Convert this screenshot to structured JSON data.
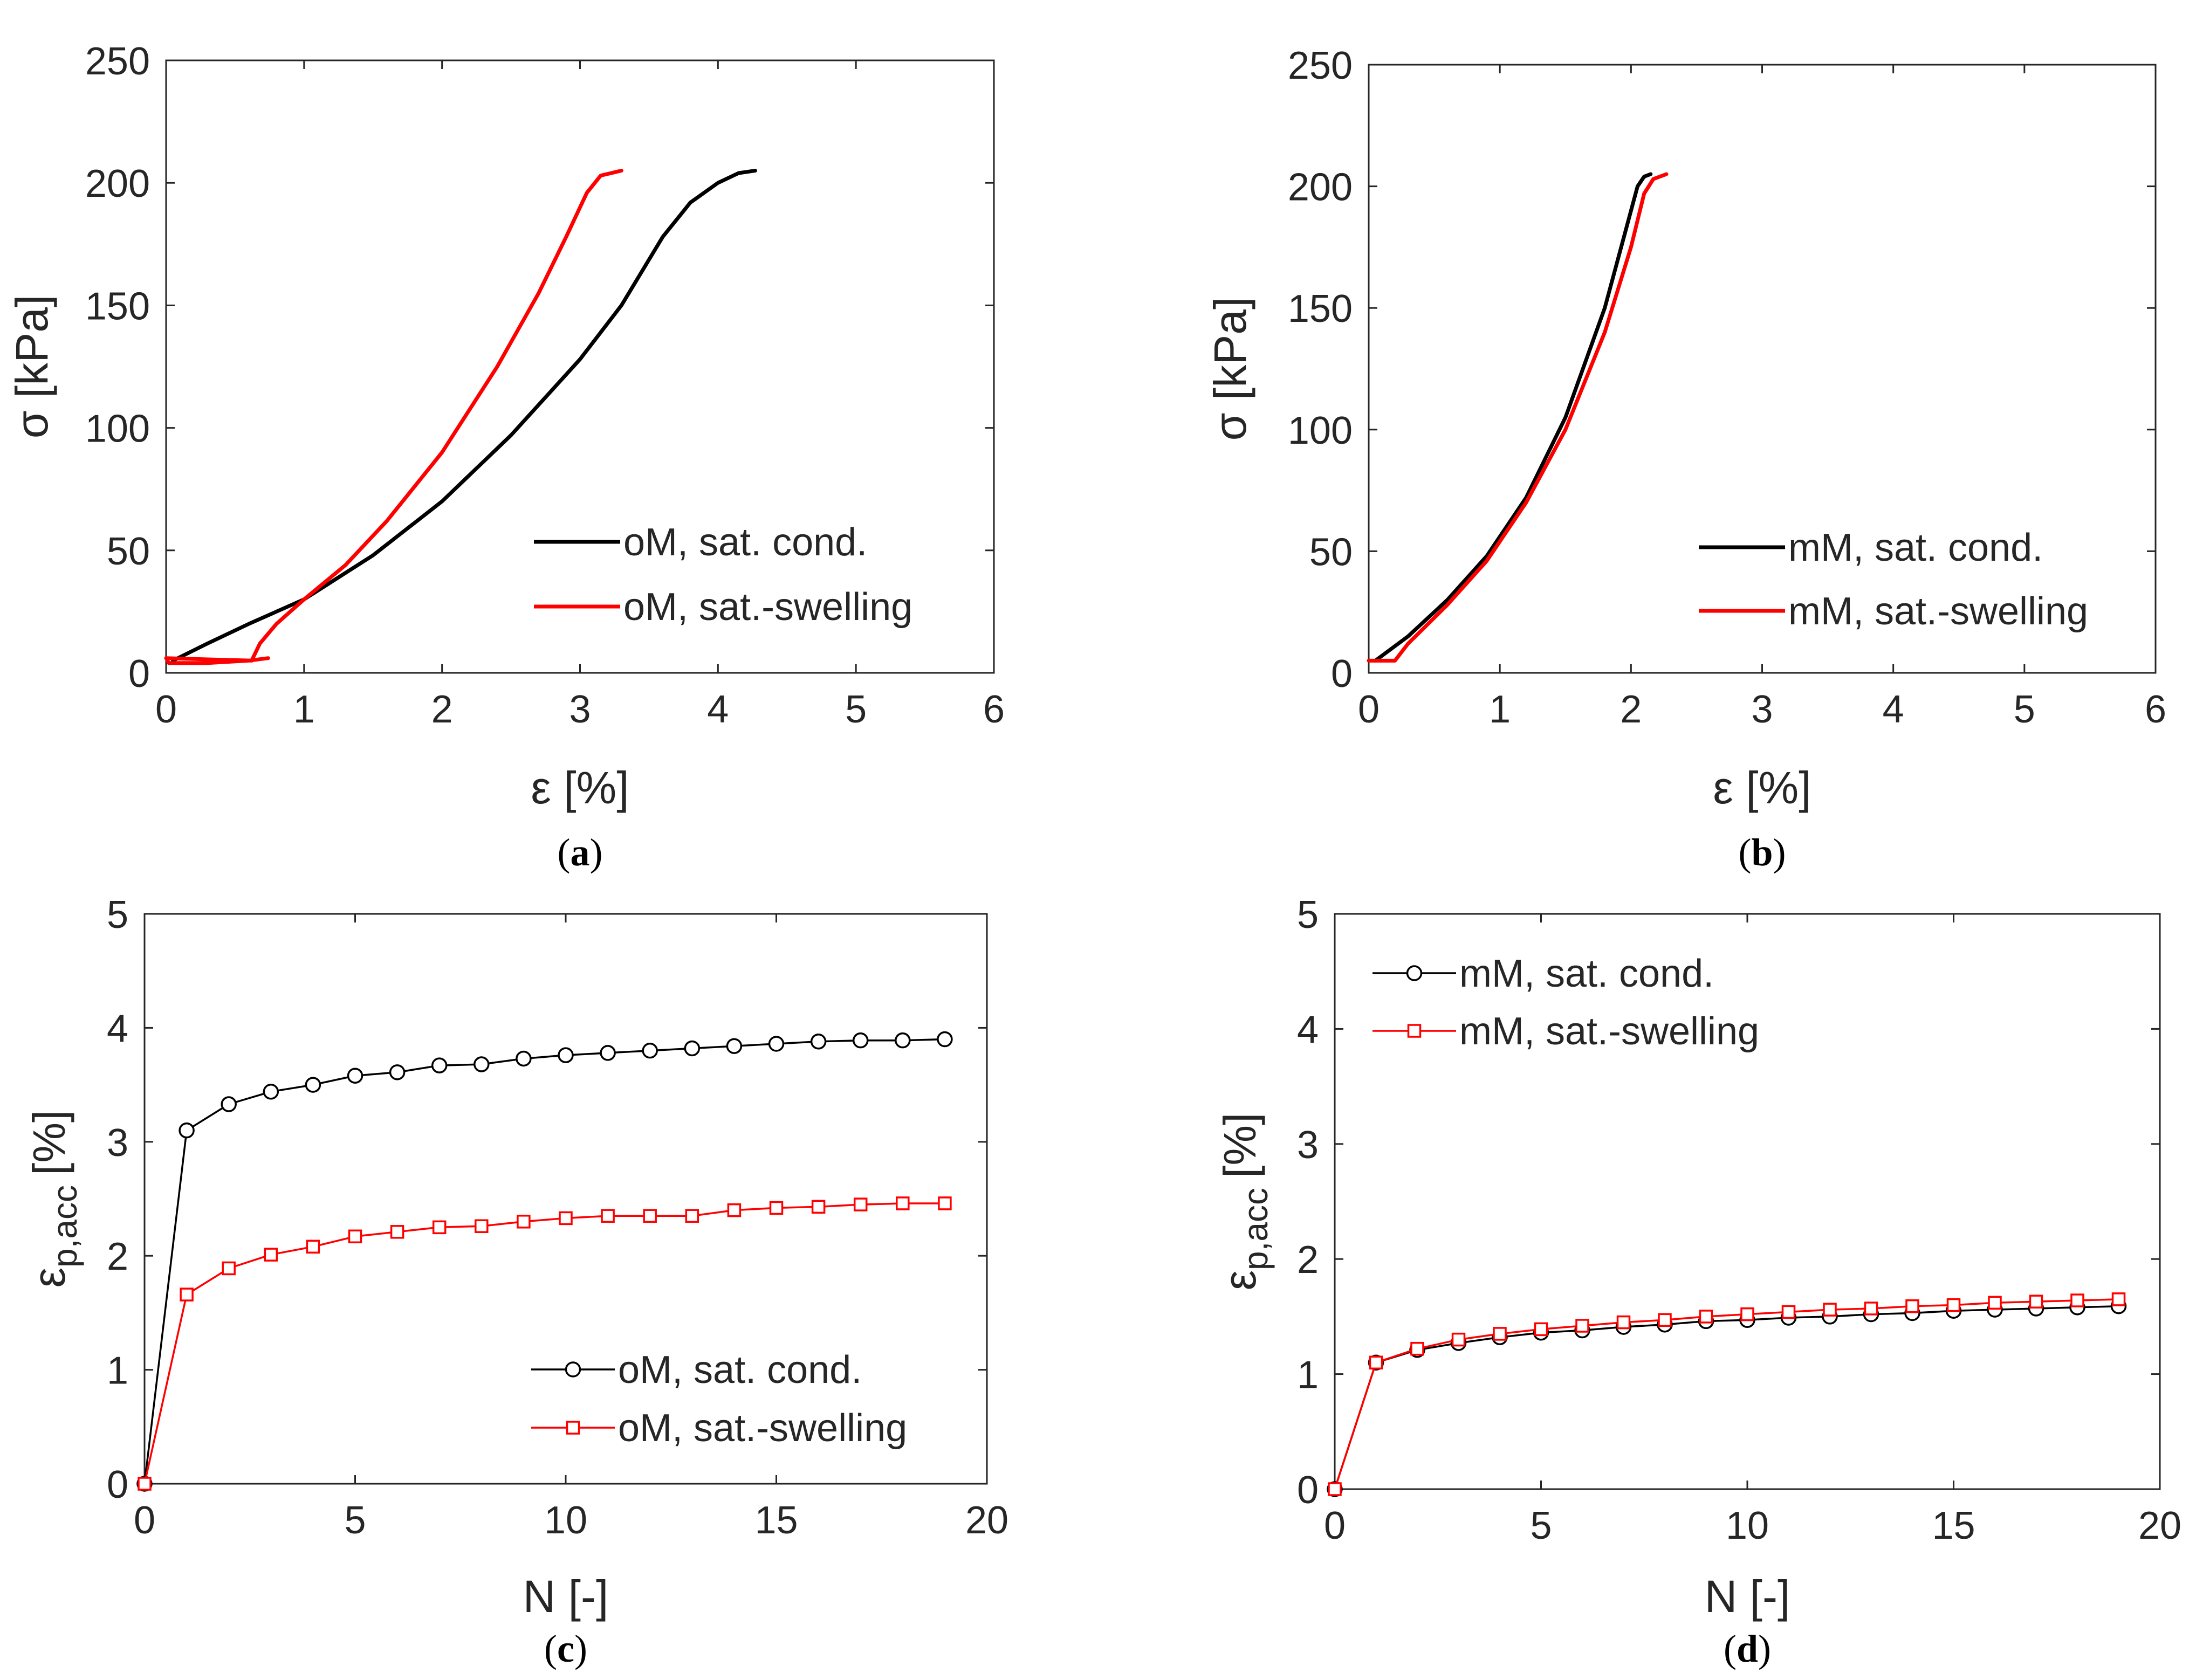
{
  "colors": {
    "black": "#000000",
    "red": "#ff0000",
    "axis": "#262626"
  },
  "chart_data": [
    {
      "id": "a",
      "type": "line",
      "caption": "a",
      "xlabel": "ε [%]",
      "ylabel": "σ [kPa]",
      "xlim": [
        0,
        6
      ],
      "ylim": [
        0,
        250
      ],
      "xticks": [
        "0",
        "1",
        "2",
        "3",
        "4",
        "5",
        "6"
      ],
      "yticks": [
        "0",
        "50",
        "100",
        "150",
        "200",
        "250"
      ],
      "legend_position": "lower-right",
      "series": [
        {
          "name": "oM, sat. cond.",
          "color": "#000000",
          "marker": "none",
          "x": [
            0.05,
            0.3,
            0.6,
            1.0,
            1.5,
            2.0,
            2.5,
            3.0,
            3.3,
            3.6,
            3.8,
            4.0,
            4.15,
            4.27
          ],
          "y": [
            5,
            12,
            20,
            30,
            48,
            70,
            97,
            128,
            150,
            178,
            192,
            200,
            204,
            205
          ]
        },
        {
          "name": "oM, sat.-swelling",
          "color": "#ff0000",
          "marker": "none",
          "x": [
            0.74,
            0.6,
            0.3,
            0.02,
            0.0,
            0.62,
            0.68,
            0.8,
            1.0,
            1.3,
            1.6,
            2.0,
            2.4,
            2.7,
            2.9,
            3.05,
            3.15,
            3.3
          ],
          "y": [
            6,
            5,
            4,
            4,
            6,
            5,
            12,
            20,
            30,
            44,
            62,
            90,
            125,
            155,
            178,
            196,
            203,
            205
          ]
        }
      ]
    },
    {
      "id": "b",
      "type": "line",
      "caption": "b",
      "xlabel": "ε [%]",
      "ylabel": "σ [kPa]",
      "xlim": [
        0,
        6
      ],
      "ylim": [
        0,
        250
      ],
      "xticks": [
        "0",
        "1",
        "2",
        "3",
        "4",
        "5",
        "6"
      ],
      "yticks": [
        "0",
        "50",
        "100",
        "150",
        "200",
        "250"
      ],
      "legend_position": "lower-right",
      "series": [
        {
          "name": "mM, sat. cond.",
          "color": "#000000",
          "marker": "none",
          "x": [
            0.05,
            0.3,
            0.6,
            0.9,
            1.2,
            1.5,
            1.8,
            1.95,
            2.05,
            2.1,
            2.15
          ],
          "y": [
            5,
            15,
            30,
            48,
            72,
            105,
            150,
            180,
            200,
            204,
            205
          ]
        },
        {
          "name": "mM, sat.-swelling",
          "color": "#ff0000",
          "marker": "none",
          "x": [
            0.0,
            0.2,
            0.3,
            0.6,
            0.9,
            1.2,
            1.5,
            1.8,
            2.0,
            2.1,
            2.17,
            2.27
          ],
          "y": [
            5,
            5,
            12,
            28,
            46,
            70,
            100,
            140,
            175,
            197,
            203,
            205
          ]
        }
      ]
    },
    {
      "id": "c",
      "type": "line",
      "caption": "c",
      "xlabel": "N [-]",
      "ylabel": "ε p,acc [%]",
      "ylabel_main": "ε",
      "ylabel_sub": "p,acc",
      "ylabel_unit": "[%]",
      "xlim": [
        0,
        20
      ],
      "ylim": [
        0,
        5
      ],
      "xticks": [
        "0",
        "5",
        "10",
        "15",
        "20"
      ],
      "yticks": [
        "0",
        "1",
        "2",
        "3",
        "4",
        "5"
      ],
      "legend_position": "lower-right",
      "series": [
        {
          "name": "oM, sat. cond.",
          "color": "#000000",
          "marker": "circle",
          "x": [
            0,
            1,
            2,
            3,
            4,
            5,
            6,
            7,
            8,
            9,
            10,
            11,
            12,
            13,
            14,
            15,
            16,
            17,
            18,
            19
          ],
          "y": [
            0,
            3.1,
            3.33,
            3.44,
            3.5,
            3.58,
            3.61,
            3.67,
            3.68,
            3.73,
            3.76,
            3.78,
            3.8,
            3.82,
            3.84,
            3.86,
            3.88,
            3.89,
            3.89,
            3.9
          ]
        },
        {
          "name": "oM, sat.-swelling",
          "color": "#ff0000",
          "marker": "square",
          "x": [
            0,
            1,
            2,
            3,
            4,
            5,
            6,
            7,
            8,
            9,
            10,
            11,
            12,
            13,
            14,
            15,
            16,
            17,
            18,
            19
          ],
          "y": [
            0,
            1.66,
            1.89,
            2.01,
            2.08,
            2.17,
            2.21,
            2.25,
            2.26,
            2.3,
            2.33,
            2.35,
            2.35,
            2.35,
            2.4,
            2.42,
            2.43,
            2.45,
            2.46,
            2.46
          ]
        }
      ]
    },
    {
      "id": "d",
      "type": "line",
      "caption": "d",
      "xlabel": "N [-]",
      "ylabel": "ε p,acc [%]",
      "ylabel_main": "ε",
      "ylabel_sub": "p,acc",
      "ylabel_unit": "[%]",
      "xlim": [
        0,
        20
      ],
      "ylim": [
        0,
        5
      ],
      "xticks": [
        "0",
        "5",
        "10",
        "15",
        "20"
      ],
      "yticks": [
        "0",
        "1",
        "2",
        "3",
        "4",
        "5"
      ],
      "legend_position": "upper-left",
      "series": [
        {
          "name": "mM, sat. cond.",
          "color": "#000000",
          "marker": "circle",
          "x": [
            0,
            1,
            2,
            3,
            4,
            5,
            6,
            7,
            8,
            9,
            10,
            11,
            12,
            13,
            14,
            15,
            16,
            17,
            18,
            19
          ],
          "y": [
            0,
            1.1,
            1.21,
            1.27,
            1.32,
            1.36,
            1.38,
            1.41,
            1.43,
            1.46,
            1.47,
            1.49,
            1.5,
            1.52,
            1.53,
            1.55,
            1.56,
            1.57,
            1.58,
            1.59
          ]
        },
        {
          "name": "mM, sat.-swelling",
          "color": "#ff0000",
          "marker": "square",
          "x": [
            0,
            1,
            2,
            3,
            4,
            5,
            6,
            7,
            8,
            9,
            10,
            11,
            12,
            13,
            14,
            15,
            16,
            17,
            18,
            19
          ],
          "y": [
            0,
            1.1,
            1.22,
            1.3,
            1.35,
            1.39,
            1.42,
            1.45,
            1.47,
            1.5,
            1.52,
            1.54,
            1.56,
            1.57,
            1.59,
            1.6,
            1.62,
            1.63,
            1.64,
            1.65
          ]
        }
      ]
    }
  ]
}
